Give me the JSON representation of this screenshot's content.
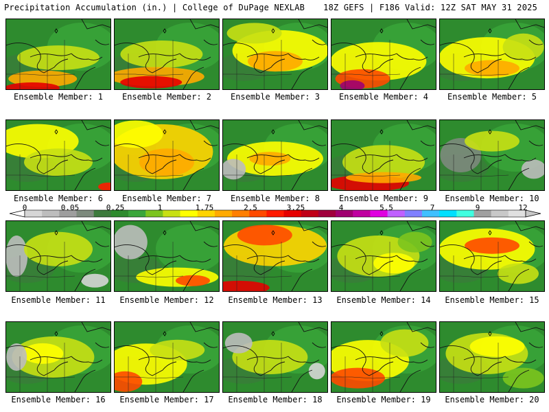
{
  "header": {
    "left": "Precipitation Accumulation (in.) | College of DuPage NEXLAB",
    "right": "18Z GEFS | F186 Valid: 12Z SAT MAY 31 2025"
  },
  "members": [
    {
      "label": "Ensemble Member: 1"
    },
    {
      "label": "Ensemble Member: 2"
    },
    {
      "label": "Ensemble Member: 3"
    },
    {
      "label": "Ensemble Member: 4"
    },
    {
      "label": "Ensemble Member: 5"
    },
    {
      "label": "Ensemble Member: 6"
    },
    {
      "label": "Ensemble Member: 7"
    },
    {
      "label": "Ensemble Member: 8"
    },
    {
      "label": "Ensemble Member: 9"
    },
    {
      "label": "Ensemble Member: 10"
    },
    {
      "label": "Ensemble Member: 11"
    },
    {
      "label": "Ensemble Member: 12"
    },
    {
      "label": "Ensemble Member: 13"
    },
    {
      "label": "Ensemble Member: 14"
    },
    {
      "label": "Ensemble Member: 15"
    },
    {
      "label": "Ensemble Member: 16"
    },
    {
      "label": "Ensemble Member: 17"
    },
    {
      "label": "Ensemble Member: 18"
    },
    {
      "label": "Ensemble Member: 19"
    },
    {
      "label": "Ensemble Member: 20"
    }
  ],
  "colorbar": {
    "ticks": [
      "0",
      "0.05",
      "0.25",
      "1",
      "1.75",
      "2.5",
      "3.25",
      "4",
      "5.5",
      "7",
      "9",
      "12"
    ],
    "colors": [
      "#d6d6d6",
      "#bdbdbd",
      "#9e9e9e",
      "#7d8a7d",
      "#3c7a3c",
      "#2e8b2e",
      "#3aa63a",
      "#7cc41e",
      "#c8e014",
      "#ffff00",
      "#ffd400",
      "#ffaa00",
      "#ff7f00",
      "#ff4a00",
      "#ff1a00",
      "#e60000",
      "#c00018",
      "#a0003c",
      "#a00070",
      "#c000a0",
      "#e000e0",
      "#c060ff",
      "#8080ff",
      "#40c0ff",
      "#00e0ff",
      "#40ffe0",
      "#a0a0a0",
      "#c8c8c8",
      "#e0e0e0"
    ]
  }
}
